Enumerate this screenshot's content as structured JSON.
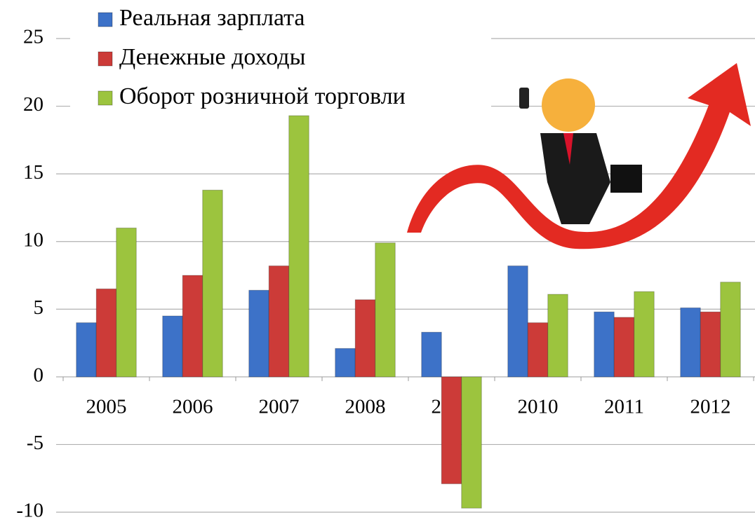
{
  "chart_data": {
    "type": "bar",
    "categories": [
      "2005",
      "2006",
      "2007",
      "2008",
      "2009",
      "2010",
      "2011",
      "2012"
    ],
    "series": [
      {
        "name": "Реальная зарплата",
        "color": "#3d72c8",
        "values": [
          4.0,
          4.5,
          6.4,
          2.1,
          3.3,
          8.2,
          4.8,
          5.1
        ]
      },
      {
        "name": "Денежные доходы",
        "color": "#cc3b38",
        "values": [
          6.5,
          7.5,
          8.2,
          5.7,
          -7.9,
          4.0,
          4.4,
          4.8
        ]
      },
      {
        "name": "Оборот розничной торговли",
        "color": "#9cc43e",
        "values": [
          11.0,
          13.8,
          19.3,
          9.9,
          -9.7,
          6.1,
          6.3,
          7.0
        ]
      }
    ],
    "ylim": [
      -10,
      25
    ],
    "yticks": [
      -10,
      -5,
      0,
      5,
      10,
      15,
      20,
      25
    ],
    "grid": true
  }
}
